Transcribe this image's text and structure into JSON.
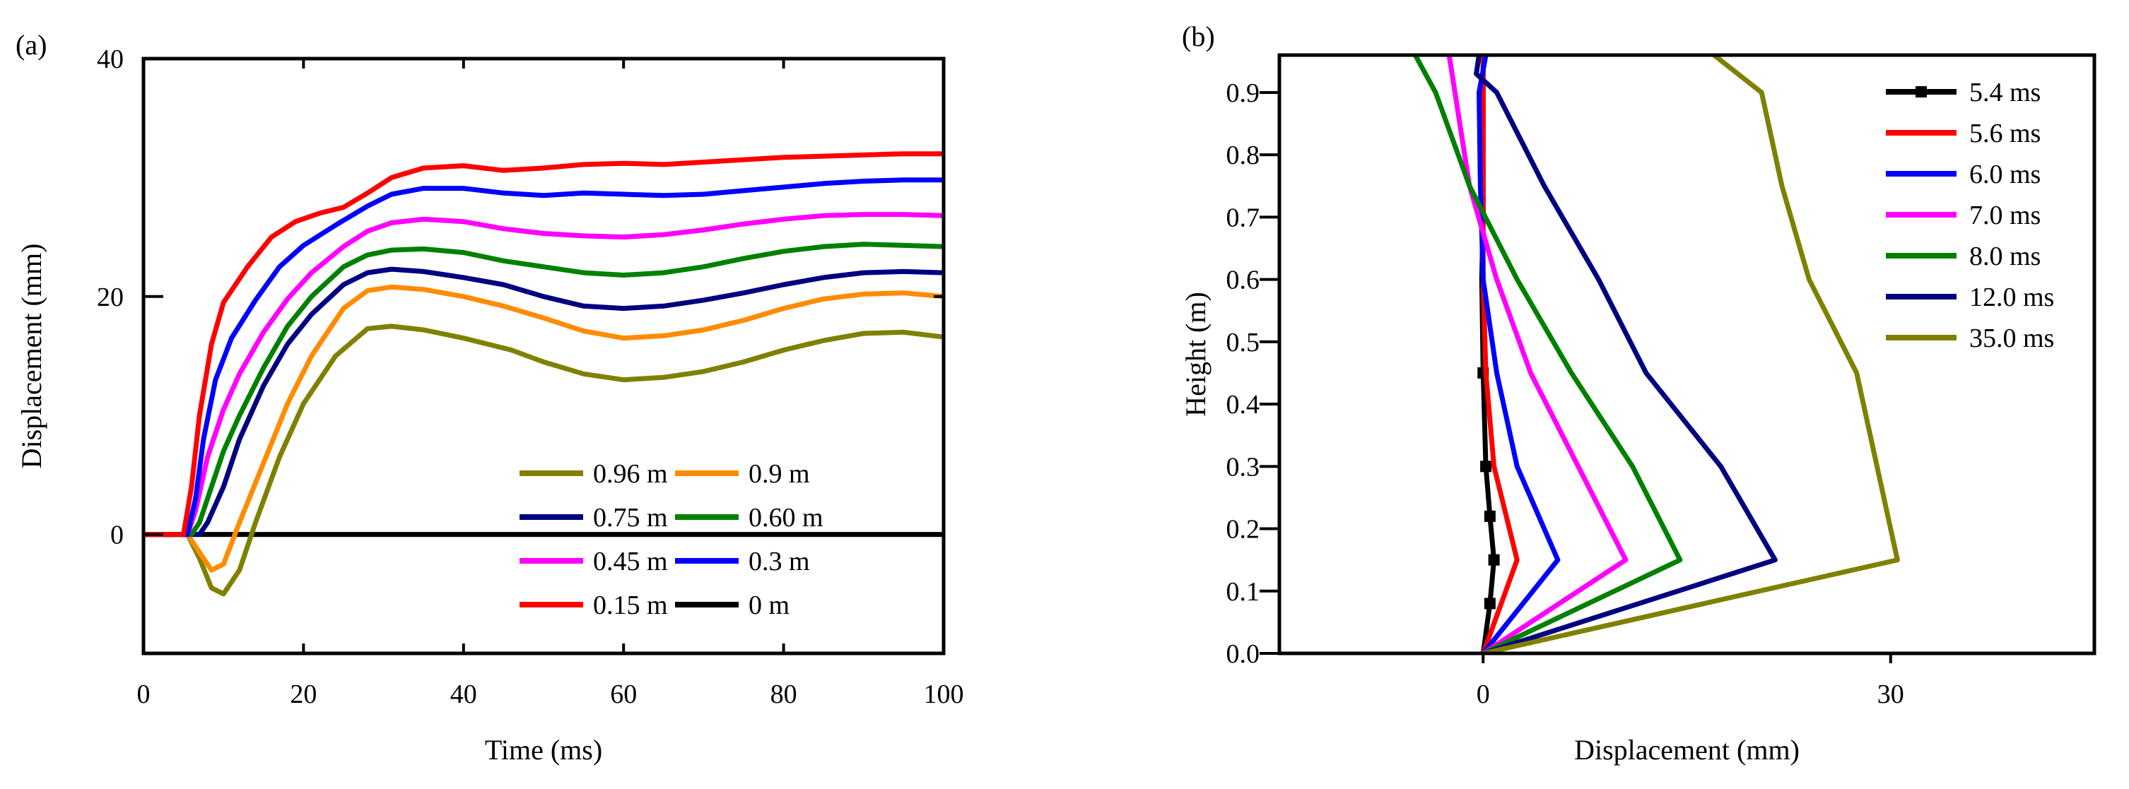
{
  "figure": {
    "panels": [
      {
        "label": "(a)"
      },
      {
        "label": "(b)"
      }
    ]
  },
  "chart_data": [
    {
      "type": "line",
      "panel": "(a)",
      "title": "",
      "xlabel": "Time (ms)",
      "ylabel": "Displacement (mm)",
      "xlim": [
        0,
        100
      ],
      "ylim": [
        -10,
        40
      ],
      "xticks": [
        0,
        20,
        40,
        60,
        80,
        100
      ],
      "yticks": [
        0,
        20,
        40
      ],
      "legend_position": "bottom-right",
      "legend_columns": 2,
      "series": [
        {
          "name": "0.96 m",
          "color": "#808000",
          "x": [
            0,
            5.5,
            7,
            8.5,
            10,
            12,
            14,
            17,
            20,
            24,
            28,
            31,
            35,
            40,
            46,
            50,
            55,
            60,
            65,
            70,
            75,
            80,
            85,
            90,
            95,
            100
          ],
          "y": [
            0,
            0,
            -2,
            -4.5,
            -5,
            -3,
            1,
            6.5,
            11,
            15,
            17.3,
            17.5,
            17.2,
            16.5,
            15.5,
            14.5,
            13.5,
            13,
            13.2,
            13.7,
            14.5,
            15.5,
            16.3,
            16.9,
            17,
            16.6
          ]
        },
        {
          "name": "0.9 m",
          "color": "#ff8c00",
          "x": [
            0,
            5.5,
            7,
            8.5,
            10,
            12,
            15,
            18,
            21,
            25,
            28,
            31,
            35,
            40,
            45,
            50,
            55,
            60,
            65,
            70,
            75,
            80,
            85,
            90,
            95,
            100
          ],
          "y": [
            0,
            0,
            -1.5,
            -3,
            -2.5,
            1,
            6,
            11,
            15,
            19,
            20.5,
            20.8,
            20.6,
            20,
            19.2,
            18.2,
            17.1,
            16.5,
            16.7,
            17.2,
            18,
            19,
            19.8,
            20.2,
            20.3,
            20
          ]
        },
        {
          "name": "0.75 m",
          "color": "#000080",
          "x": [
            0,
            6,
            7,
            8,
            10,
            12,
            15,
            18,
            21,
            25,
            28,
            31,
            35,
            40,
            45,
            50,
            55,
            60,
            65,
            70,
            75,
            80,
            85,
            90,
            95,
            100
          ],
          "y": [
            0,
            0,
            0,
            1,
            4,
            8,
            12.5,
            16,
            18.5,
            21,
            22,
            22.3,
            22.1,
            21.6,
            21,
            20,
            19.2,
            19,
            19.2,
            19.7,
            20.3,
            21,
            21.6,
            22,
            22.1,
            22
          ]
        },
        {
          "name": "0.60 m",
          "color": "#008000",
          "x": [
            0,
            6,
            7,
            8.5,
            10,
            12,
            15,
            18,
            21,
            25,
            28,
            31,
            35,
            40,
            45,
            50,
            55,
            60,
            65,
            70,
            75,
            80,
            85,
            90,
            95,
            100
          ],
          "y": [
            0,
            0,
            1,
            4,
            7,
            10,
            14,
            17.5,
            20,
            22.5,
            23.5,
            23.9,
            24,
            23.7,
            23,
            22.5,
            22,
            21.8,
            22,
            22.5,
            23.2,
            23.8,
            24.2,
            24.4,
            24.3,
            24.2
          ]
        },
        {
          "name": "0.45 m",
          "color": "#ff00ff",
          "x": [
            0,
            5.5,
            6.5,
            8,
            10,
            12,
            15,
            18,
            21,
            25,
            28,
            31,
            35,
            40,
            45,
            50,
            55,
            60,
            65,
            70,
            75,
            80,
            85,
            90,
            95,
            100
          ],
          "y": [
            0,
            0,
            2,
            6.5,
            10.5,
            13.5,
            17,
            19.8,
            22,
            24.2,
            25.5,
            26.2,
            26.5,
            26.3,
            25.7,
            25.3,
            25.1,
            25,
            25.2,
            25.6,
            26.1,
            26.5,
            26.8,
            26.9,
            26.9,
            26.8
          ]
        },
        {
          "name": "0.3 m",
          "color": "#0000ff",
          "x": [
            0,
            5.5,
            6.5,
            7.5,
            9,
            11,
            14,
            17,
            20,
            24,
            28,
            31,
            35,
            40,
            45,
            50,
            55,
            60,
            65,
            70,
            75,
            80,
            85,
            90,
            95,
            100
          ],
          "y": [
            0,
            0,
            3,
            8,
            13,
            16.5,
            19.7,
            22.5,
            24.3,
            26,
            27.6,
            28.6,
            29.1,
            29.1,
            28.7,
            28.5,
            28.7,
            28.6,
            28.5,
            28.6,
            28.9,
            29.2,
            29.5,
            29.7,
            29.8,
            29.8
          ]
        },
        {
          "name": "0.15 m",
          "color": "#ff0000",
          "x": [
            0,
            5,
            6,
            7,
            8.5,
            10,
            13,
            16,
            19,
            22,
            25,
            28,
            31,
            35,
            40,
            45,
            50,
            55,
            60,
            65,
            70,
            75,
            80,
            85,
            90,
            95,
            100
          ],
          "y": [
            0,
            0,
            4,
            10,
            16,
            19.5,
            22.5,
            25,
            26.3,
            27,
            27.5,
            28.7,
            30,
            30.8,
            31,
            30.6,
            30.8,
            31.1,
            31.2,
            31.1,
            31.3,
            31.5,
            31.7,
            31.8,
            31.9,
            32,
            32
          ]
        },
        {
          "name": "0 m",
          "color": "#000000",
          "x": [
            0,
            100
          ],
          "y": [
            0,
            0
          ]
        }
      ]
    },
    {
      "type": "line",
      "panel": "(b)",
      "title": "",
      "xlabel": "Displacement (mm)",
      "ylabel": "Height (m)",
      "xlim": [
        -15,
        45
      ],
      "ylim": [
        0,
        0.96
      ],
      "xticks": [
        0,
        30
      ],
      "yticks": [
        0.0,
        0.1,
        0.2,
        0.3,
        0.4,
        0.5,
        0.6,
        0.7,
        0.8,
        0.9
      ],
      "legend_position": "top-right",
      "series": [
        {
          "name": "5.4 ms",
          "color": "#000000",
          "markers": true,
          "x": [
            0,
            0.5,
            0.8,
            0.5,
            0.2,
            0,
            -0.1,
            0,
            0,
            0,
            0
          ],
          "y": [
            0,
            0.08,
            0.15,
            0.22,
            0.3,
            0.45,
            0.6,
            0.7,
            0.8,
            0.9,
            0.96
          ]
        },
        {
          "name": "5.6 ms",
          "color": "#ff0000",
          "x": [
            0,
            2.5,
            0.8,
            0.2,
            0,
            0,
            0
          ],
          "y": [
            0,
            0.15,
            0.3,
            0.45,
            0.6,
            0.9,
            0.96
          ]
        },
        {
          "name": "6.0 ms",
          "color": "#0000ff",
          "x": [
            0,
            5.5,
            2.5,
            1,
            0,
            -0.2,
            -0.3,
            0.2
          ],
          "y": [
            0,
            0.15,
            0.3,
            0.45,
            0.6,
            0.75,
            0.9,
            0.96
          ]
        },
        {
          "name": "7.0 ms",
          "color": "#ff00ff",
          "x": [
            0,
            10.5,
            7,
            3.5,
            1,
            -1,
            -2.5
          ],
          "y": [
            0,
            0.15,
            0.3,
            0.45,
            0.6,
            0.75,
            0.96
          ]
        },
        {
          "name": "8.0 ms",
          "color": "#008000",
          "x": [
            0,
            14.5,
            11,
            6.5,
            2.5,
            -1,
            -3.5,
            -5
          ],
          "y": [
            0,
            0.15,
            0.3,
            0.45,
            0.6,
            0.75,
            0.9,
            0.96
          ]
        },
        {
          "name": "12.0 ms",
          "color": "#000080",
          "x": [
            0,
            21.5,
            17.5,
            12,
            8.5,
            4.5,
            1,
            -0.5,
            -0.3
          ],
          "y": [
            0,
            0.15,
            0.3,
            0.45,
            0.6,
            0.75,
            0.9,
            0.93,
            0.96
          ]
        },
        {
          "name": "35.0 ms",
          "color": "#808000",
          "x": [
            0,
            30.5,
            29,
            27.5,
            24,
            22,
            20.5,
            17
          ],
          "y": [
            0,
            0.15,
            0.3,
            0.45,
            0.6,
            0.75,
            0.9,
            0.96
          ]
        }
      ]
    }
  ]
}
